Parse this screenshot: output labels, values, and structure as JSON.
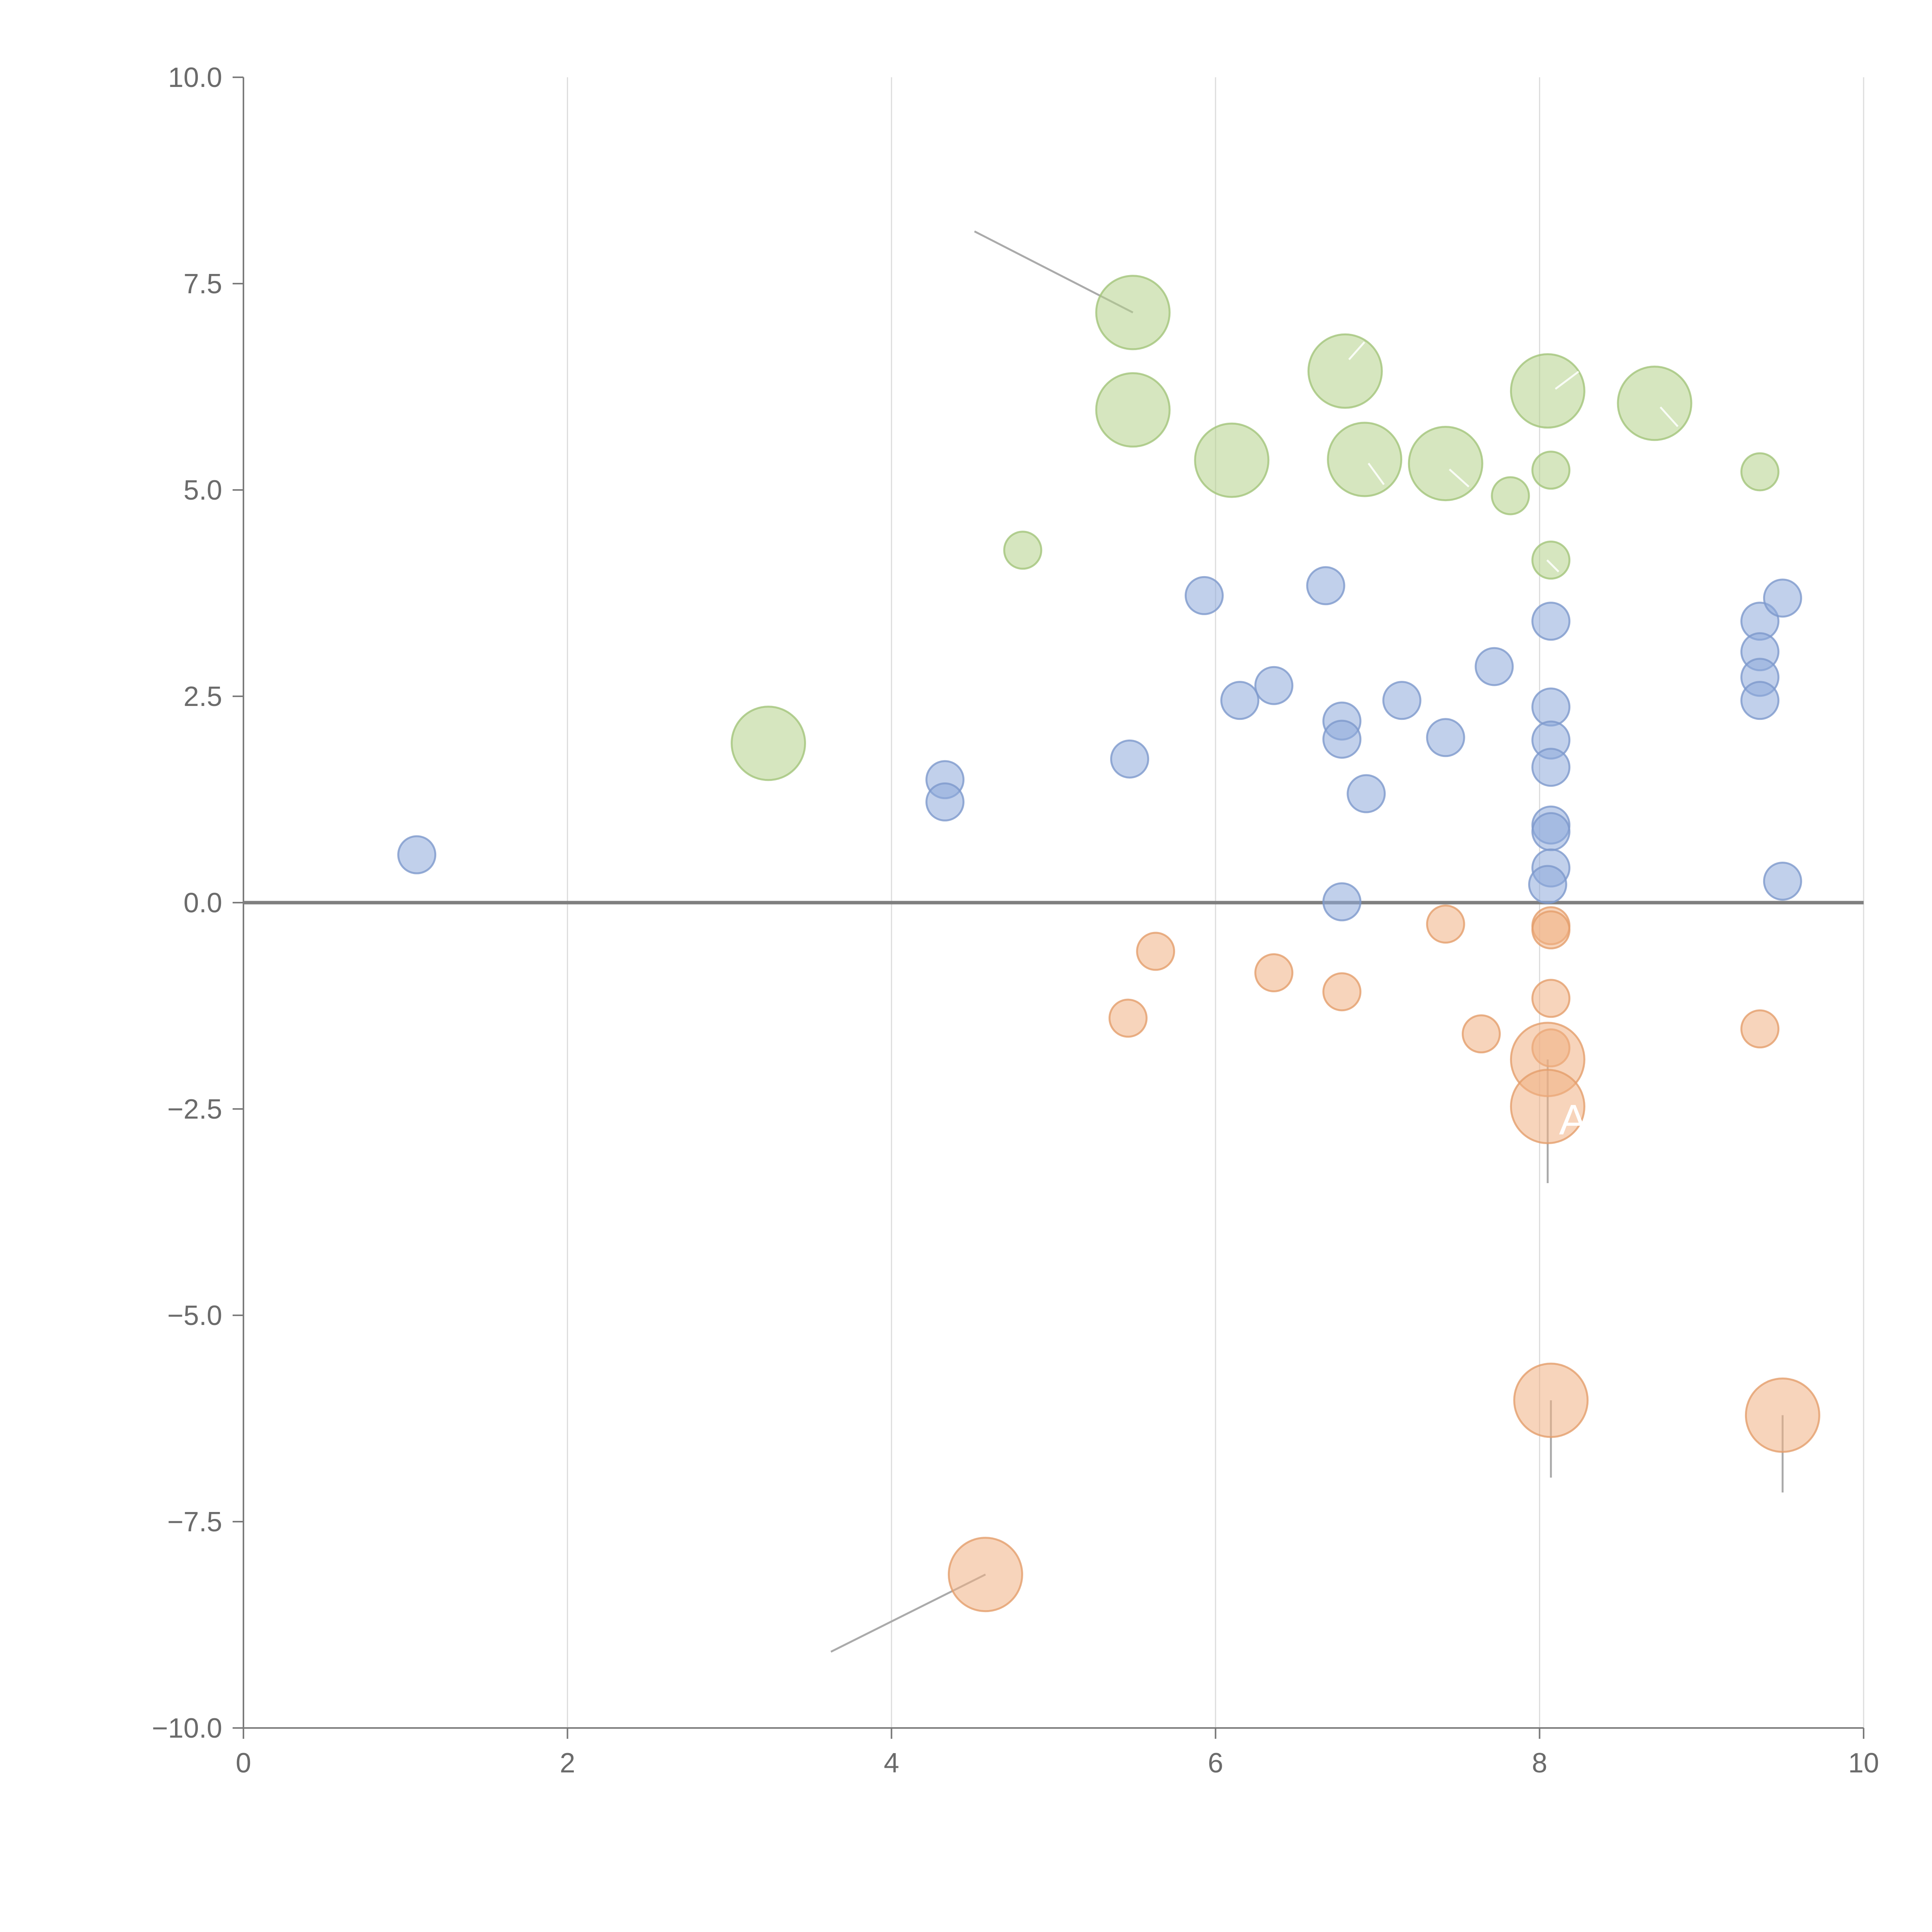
{
  "chart_data": {
    "type": "scatter",
    "title": "",
    "xlabel": "",
    "ylabel": "",
    "xlim": [
      0,
      10
    ],
    "ylim": [
      -10,
      10
    ],
    "x_ticks": [
      "0",
      "2",
      "4",
      "6",
      "8",
      "10"
    ],
    "x_tick_values": [
      0,
      2,
      4,
      6,
      8,
      10
    ],
    "y_ticks": [
      "10.0",
      "7.5",
      "5.0",
      "2.5",
      "0.0",
      "−2.5",
      "−5.0",
      "−7.5",
      "−10.0"
    ],
    "y_tick_values": [
      10,
      7.5,
      5,
      2.5,
      0,
      -2.5,
      -5,
      -7.5,
      -10
    ],
    "grid": "vertical",
    "zero_line": true,
    "series": [
      {
        "name": "green",
        "color": "#b5d18a",
        "stroke": "#a3c47a",
        "points": [
          {
            "x": 5.49,
            "y": 7.15,
            "size": 3
          },
          {
            "x": 5.49,
            "y": 5.97,
            "size": 3
          },
          {
            "x": 6.8,
            "y": 6.44,
            "size": 3
          },
          {
            "x": 8.05,
            "y": 6.2,
            "size": 3
          },
          {
            "x": 8.71,
            "y": 6.05,
            "size": 3
          },
          {
            "x": 6.1,
            "y": 5.36,
            "size": 3
          },
          {
            "x": 6.92,
            "y": 5.37,
            "size": 3
          },
          {
            "x": 7.42,
            "y": 5.32,
            "size": 3
          },
          {
            "x": 8.07,
            "y": 5.24,
            "size": 1
          },
          {
            "x": 9.36,
            "y": 5.22,
            "size": 1
          },
          {
            "x": 7.82,
            "y": 4.93,
            "size": 1
          },
          {
            "x": 4.81,
            "y": 4.27,
            "size": 1
          },
          {
            "x": 8.07,
            "y": 4.15,
            "size": 1
          },
          {
            "x": 3.24,
            "y": 1.93,
            "size": 3
          }
        ]
      },
      {
        "name": "blue",
        "color": "#8eaadb",
        "stroke": "#7d99cc",
        "points": [
          {
            "x": 1.07,
            "y": 0.58,
            "size": 1
          },
          {
            "x": 4.33,
            "y": 1.49,
            "size": 1
          },
          {
            "x": 4.33,
            "y": 1.22,
            "size": 1
          },
          {
            "x": 5.47,
            "y": 1.74,
            "size": 1
          },
          {
            "x": 5.93,
            "y": 3.72,
            "size": 1
          },
          {
            "x": 6.15,
            "y": 2.45,
            "size": 1
          },
          {
            "x": 6.36,
            "y": 2.63,
            "size": 1
          },
          {
            "x": 6.68,
            "y": 3.84,
            "size": 1
          },
          {
            "x": 6.78,
            "y": 2.2,
            "size": 1
          },
          {
            "x": 6.78,
            "y": 1.98,
            "size": 1
          },
          {
            "x": 6.93,
            "y": 1.32,
            "size": 1
          },
          {
            "x": 6.78,
            "y": 0.01,
            "size": 1
          },
          {
            "x": 7.15,
            "y": 2.45,
            "size": 1
          },
          {
            "x": 7.42,
            "y": 2.0,
            "size": 1
          },
          {
            "x": 7.72,
            "y": 2.86,
            "size": 1
          },
          {
            "x": 8.07,
            "y": 3.41,
            "size": 1
          },
          {
            "x": 8.07,
            "y": 2.37,
            "size": 1
          },
          {
            "x": 8.07,
            "y": 1.97,
            "size": 1
          },
          {
            "x": 8.07,
            "y": 1.64,
            "size": 1
          },
          {
            "x": 8.07,
            "y": 0.94,
            "size": 1
          },
          {
            "x": 8.07,
            "y": 0.86,
            "size": 1
          },
          {
            "x": 8.07,
            "y": 0.42,
            "size": 1
          },
          {
            "x": 8.05,
            "y": 0.22,
            "size": 1
          },
          {
            "x": 9.36,
            "y": 3.41,
            "size": 1
          },
          {
            "x": 9.36,
            "y": 3.04,
            "size": 1
          },
          {
            "x": 9.36,
            "y": 2.73,
            "size": 1
          },
          {
            "x": 9.36,
            "y": 2.45,
            "size": 1
          },
          {
            "x": 9.5,
            "y": 3.69,
            "size": 1
          },
          {
            "x": 9.5,
            "y": 0.26,
            "size": 1
          }
        ]
      },
      {
        "name": "orange",
        "color": "#f0b184",
        "stroke": "#e49e6b",
        "points": [
          {
            "x": 5.63,
            "y": -0.59,
            "size": 1
          },
          {
            "x": 5.46,
            "y": -1.4,
            "size": 1
          },
          {
            "x": 6.36,
            "y": -0.85,
            "size": 1
          },
          {
            "x": 6.78,
            "y": -1.08,
            "size": 1
          },
          {
            "x": 7.42,
            "y": -0.26,
            "size": 1
          },
          {
            "x": 7.64,
            "y": -1.59,
            "size": 1
          },
          {
            "x": 8.07,
            "y": -0.28,
            "size": 1
          },
          {
            "x": 8.07,
            "y": -0.33,
            "size": 1
          },
          {
            "x": 8.07,
            "y": -1.16,
            "size": 1
          },
          {
            "x": 8.07,
            "y": -1.76,
            "size": 1
          },
          {
            "x": 8.05,
            "y": -1.9,
            "size": 3
          },
          {
            "x": 8.05,
            "y": -2.47,
            "size": 3
          },
          {
            "x": 9.36,
            "y": -1.53,
            "size": 1
          },
          {
            "x": 8.07,
            "y": -6.03,
            "size": 3
          },
          {
            "x": 9.5,
            "y": -6.21,
            "size": 3
          },
          {
            "x": 4.58,
            "y": -8.14,
            "size": 3
          }
        ]
      }
    ],
    "annotations": [
      {
        "text": "A",
        "x": 8.12,
        "y": -2.62
      }
    ]
  }
}
